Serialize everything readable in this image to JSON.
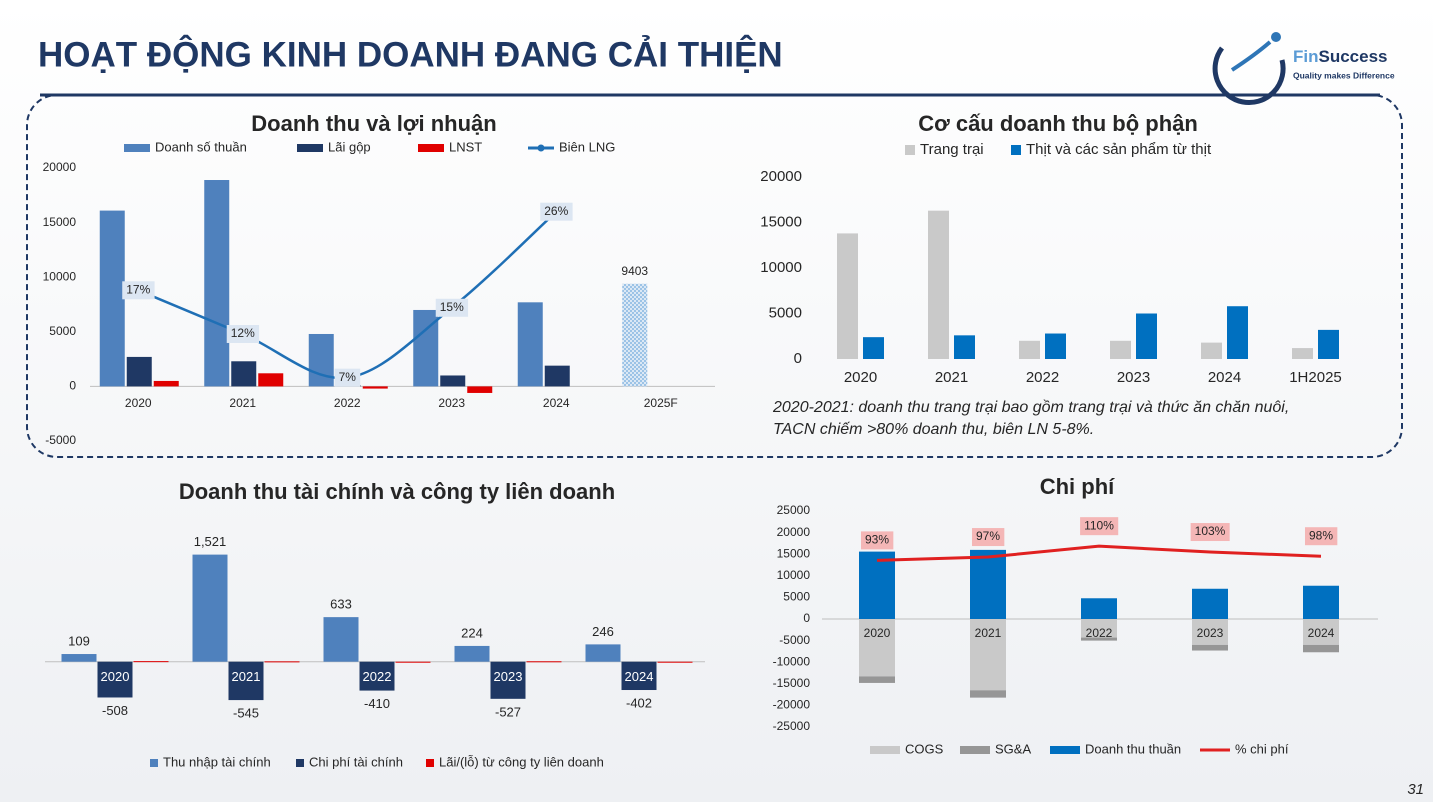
{
  "header": {
    "title": "HOẠT ĐỘNG KINH DOANH ĐANG CẢI THIỆN",
    "logo": {
      "brand_prefix": "Fin",
      "brand": "Success",
      "tagline": "Quality makes Difference"
    }
  },
  "page_number": "31",
  "chart_data": [
    {
      "type": "bar",
      "title": "Doanh thu và lợi nhuận",
      "categories": [
        "2020",
        "2021",
        "2022",
        "2023",
        "2024",
        "2025F"
      ],
      "ylim": [
        -5000,
        20000
      ],
      "yticks": [
        -5000,
        0,
        5000,
        10000,
        15000,
        20000
      ],
      "y2lim": [
        -0.25,
        31
      ],
      "legend": "top",
      "series": [
        {
          "name": "Doanh số thuần",
          "color": "#4f81bd",
          "values": [
            16100,
            18900,
            4800,
            7000,
            7700,
            9403
          ],
          "value_labels": [
            null,
            null,
            null,
            null,
            null,
            "9403"
          ],
          "hatched": [
            false,
            false,
            false,
            false,
            false,
            true
          ]
        },
        {
          "name": "Lãi gộp",
          "color": "#1f3864",
          "values": [
            2700,
            2300,
            100,
            1000,
            1900,
            null
          ]
        },
        {
          "name": "LNST",
          "color": "#e00000",
          "values": [
            500,
            1200,
            -200,
            -600,
            null,
            null
          ]
        },
        {
          "name": "Biên LNG",
          "type": "line",
          "axis": "y2",
          "color": "#1f6fb5",
          "values": [
            17,
            12,
            7,
            15,
            26,
            null
          ],
          "value_labels": [
            "17%",
            "12%",
            "7%",
            "15%",
            "26%",
            null
          ]
        }
      ]
    },
    {
      "type": "bar",
      "title": "Cơ cấu doanh thu bộ phận",
      "categories": [
        "2020",
        "2021",
        "2022",
        "2023",
        "2024",
        "1H2025"
      ],
      "ylim": [
        0,
        20000
      ],
      "yticks": [
        0,
        5000,
        10000,
        15000,
        20000
      ],
      "legend": "top",
      "series": [
        {
          "name": "Trang trại",
          "color": "#c9c9c9",
          "values": [
            13800,
            16300,
            2000,
            2000,
            1800,
            1200
          ]
        },
        {
          "name": "Thịt và các sản phẩm từ thịt",
          "color": "#0070c0",
          "values": [
            2400,
            2600,
            2800,
            5000,
            5800,
            3200
          ]
        }
      ],
      "note": [
        "2020-2021: doanh thu trang trại bao gồm trang trại và thức ăn chăn nuôi,",
        "TACN chiếm >80% doanh thu, biên LN 5-8%."
      ]
    },
    {
      "type": "bar",
      "title": "Doanh thu tài chính và công ty liên doanh",
      "categories": [
        "2020",
        "2021",
        "2022",
        "2023",
        "2024"
      ],
      "ylim": [
        -700,
        1700
      ],
      "legend": "bottom",
      "series": [
        {
          "name": "Thu nhập tài chính",
          "color": "#4f81bd",
          "values": [
            109,
            1521,
            633,
            224,
            246
          ],
          "value_labels": [
            "109",
            "1,521",
            "633",
            "224",
            "246"
          ]
        },
        {
          "name": "Chi phí tài chính",
          "color": "#1f3864",
          "values": [
            -508,
            -545,
            -410,
            -527,
            -402
          ],
          "value_labels": [
            "-508",
            "-545",
            "-410",
            "-527",
            "-402"
          ]
        },
        {
          "name": "Lãi/(lỗ) từ công ty liên doanh",
          "color": "#e00000",
          "values": [
            8,
            5,
            0,
            6,
            0
          ]
        }
      ]
    },
    {
      "type": "stacked_bar",
      "title": "Chi phí",
      "categories": [
        "2020",
        "2021",
        "2022",
        "2023",
        "2024"
      ],
      "ylim": [
        -25000,
        25000
      ],
      "yticks": [
        -25000,
        -20000,
        -15000,
        -10000,
        -5000,
        0,
        5000,
        10000,
        15000,
        20000,
        25000
      ],
      "y2lim": [
        -106,
        152
      ],
      "legend": "bottom",
      "series": [
        {
          "name": "COGS",
          "color": "#c9c9c9",
          "values": [
            -13300,
            -16500,
            -4300,
            -6000,
            -6000
          ]
        },
        {
          "name": "SG&A",
          "color": "#969696",
          "values": [
            -1500,
            -1700,
            -700,
            -1300,
            -1700
          ]
        },
        {
          "name": "Doanh thu thuần",
          "color": "#0070c0",
          "values": [
            15600,
            16000,
            4800,
            7000,
            7700
          ]
        },
        {
          "name": "% chi phí",
          "type": "line",
          "axis": "y2",
          "color": "#e02020",
          "values": [
            93,
            97,
            110,
            103,
            98
          ],
          "value_labels": [
            "93%",
            "97%",
            "110%",
            "103%",
            "98%"
          ]
        }
      ]
    }
  ]
}
